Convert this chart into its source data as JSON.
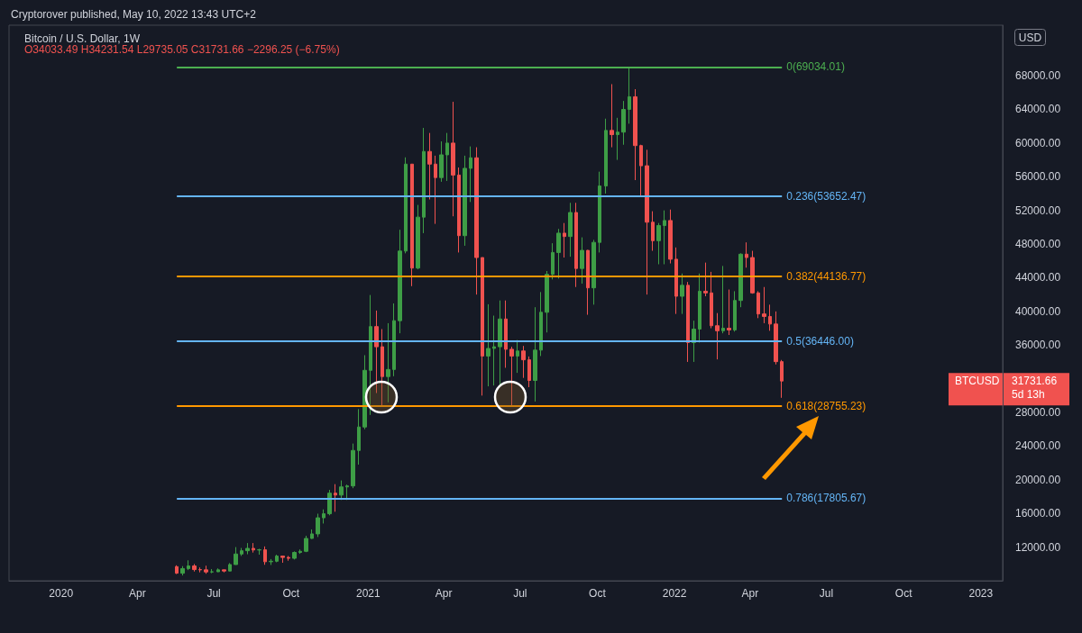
{
  "chart_data": {
    "type": "candlestick",
    "title": "Bitcoin / U.S. Dollar, 1W",
    "subtitle": "O34033.49 H34231.54 L29735.05 C31731.66 −2296.25 (−6.75%)",
    "annotations": [
      "Cryptorover published, May 10, 2022 13:43 UTC+2",
      "USD",
      "BTCUSD",
      "31731.66",
      "5d 13h"
    ],
    "x": [
      "2020-05-18",
      "2020-05-25",
      "2020-06-01",
      "2020-06-08",
      "2020-06-15",
      "2020-06-22",
      "2020-06-29",
      "2020-07-06",
      "2020-07-13",
      "2020-07-20",
      "2020-07-27",
      "2020-08-03",
      "2020-08-10",
      "2020-08-17",
      "2020-08-24",
      "2020-08-31",
      "2020-09-07",
      "2020-09-14",
      "2020-09-21",
      "2020-09-28",
      "2020-10-05",
      "2020-10-12",
      "2020-10-19",
      "2020-10-26",
      "2020-11-02",
      "2020-11-09",
      "2020-11-16",
      "2020-11-23",
      "2020-11-30",
      "2020-12-07",
      "2020-12-14",
      "2020-12-21",
      "2020-12-28",
      "2021-01-04",
      "2021-01-11",
      "2021-01-18",
      "2021-01-25",
      "2021-02-01",
      "2021-02-08",
      "2021-02-15",
      "2021-02-22",
      "2021-03-01",
      "2021-03-08",
      "2021-03-15",
      "2021-03-22",
      "2021-03-29",
      "2021-04-05",
      "2021-04-12",
      "2021-04-19",
      "2021-04-26",
      "2021-05-03",
      "2021-05-10",
      "2021-05-17",
      "2021-05-24",
      "2021-05-31",
      "2021-06-07",
      "2021-06-14",
      "2021-06-21",
      "2021-06-28",
      "2021-07-05",
      "2021-07-12",
      "2021-07-19",
      "2021-07-26",
      "2021-08-02",
      "2021-08-09",
      "2021-08-16",
      "2021-08-23",
      "2021-08-30",
      "2021-09-06",
      "2021-09-13",
      "2021-09-20",
      "2021-09-27",
      "2021-10-04",
      "2021-10-11",
      "2021-10-18",
      "2021-10-25",
      "2021-11-01",
      "2021-11-08",
      "2021-11-15",
      "2021-11-22",
      "2021-11-29",
      "2021-12-06",
      "2021-12-13",
      "2021-12-20",
      "2021-12-27",
      "2022-01-03",
      "2022-01-10",
      "2022-01-17",
      "2022-01-24",
      "2022-01-31",
      "2022-02-07",
      "2022-02-14",
      "2022-02-21",
      "2022-02-28",
      "2022-03-07",
      "2022-03-14",
      "2022-03-21",
      "2022-03-28",
      "2022-04-04",
      "2022-04-11",
      "2022-04-18",
      "2022-04-25",
      "2022-05-02",
      "2022-05-09"
    ],
    "ohlc": [
      [
        9680,
        9840,
        8800,
        8900
      ],
      [
        8900,
        9740,
        8630,
        9450
      ],
      [
        9450,
        10430,
        9270,
        9760
      ],
      [
        9760,
        9990,
        9100,
        9330
      ],
      [
        9330,
        9580,
        9000,
        9300
      ],
      [
        9300,
        9790,
        8830,
        9050
      ],
      [
        9050,
        9390,
        8900,
        9070
      ],
      [
        9070,
        9470,
        9040,
        9300
      ],
      [
        9300,
        9320,
        9000,
        9160
      ],
      [
        9160,
        10100,
        9140,
        9930
      ],
      [
        9930,
        12000,
        9900,
        11180
      ],
      [
        11180,
        11900,
        10950,
        11570
      ],
      [
        11570,
        12480,
        11150,
        11850
      ],
      [
        11850,
        12480,
        11350,
        11660
      ],
      [
        11660,
        11800,
        11100,
        11680
      ],
      [
        11680,
        12080,
        9900,
        10260
      ],
      [
        10260,
        10580,
        9880,
        10320
      ],
      [
        10320,
        11100,
        10200,
        10930
      ],
      [
        10930,
        10990,
        10140,
        10770
      ],
      [
        10770,
        10950,
        10380,
        10670
      ],
      [
        10670,
        11490,
        10530,
        11370
      ],
      [
        11370,
        11720,
        11200,
        11500
      ],
      [
        11500,
        13350,
        11400,
        13030
      ],
      [
        13030,
        14100,
        12980,
        13570
      ],
      [
        13570,
        15970,
        13200,
        15480
      ],
      [
        15480,
        16480,
        14800,
        15960
      ],
      [
        15960,
        18800,
        15780,
        18410
      ],
      [
        18410,
        19480,
        16200,
        18180
      ],
      [
        18180,
        19920,
        17600,
        19150
      ],
      [
        19150,
        19420,
        17600,
        19270
      ],
      [
        19270,
        24300,
        19000,
        23480
      ],
      [
        23480,
        28400,
        21800,
        26270
      ],
      [
        26270,
        34800,
        26000,
        33000
      ],
      [
        33000,
        41950,
        27700,
        38200
      ],
      [
        38200,
        40100,
        30300,
        35800
      ],
      [
        35800,
        37900,
        28800,
        32260
      ],
      [
        32260,
        38600,
        29200,
        33100
      ],
      [
        33100,
        40950,
        32300,
        38900
      ],
      [
        38900,
        49700,
        37400,
        47170
      ],
      [
        47170,
        58300,
        46900,
        57500
      ],
      [
        57500,
        57500,
        43000,
        45150
      ],
      [
        45150,
        52650,
        45000,
        51200
      ],
      [
        51200,
        61800,
        49300,
        59000
      ],
      [
        59000,
        61200,
        53300,
        57500
      ],
      [
        57500,
        58500,
        50400,
        55900
      ],
      [
        55900,
        60200,
        55400,
        58600
      ],
      [
        58600,
        61200,
        55500,
        60000
      ],
      [
        60000,
        64900,
        51300,
        56200
      ],
      [
        56200,
        57100,
        47000,
        49000
      ],
      [
        49000,
        58500,
        47800,
        57000
      ],
      [
        57000,
        59600,
        53000,
        58250
      ],
      [
        58250,
        59500,
        42000,
        46400
      ],
      [
        46400,
        46400,
        30000,
        34700
      ],
      [
        34700,
        40850,
        31100,
        35600
      ],
      [
        35600,
        39500,
        31200,
        35800
      ],
      [
        35800,
        41300,
        31000,
        39100
      ],
      [
        39100,
        41300,
        33300,
        35500
      ],
      [
        35500,
        35800,
        28800,
        34700
      ],
      [
        34700,
        36600,
        32700,
        35300
      ],
      [
        35300,
        35900,
        32100,
        34250
      ],
      [
        34250,
        34650,
        31000,
        31800
      ],
      [
        31800,
        40500,
        29300,
        35400
      ],
      [
        35400,
        42300,
        34700,
        39900
      ],
      [
        39900,
        44800,
        37500,
        44400
      ],
      [
        44400,
        48100,
        43800,
        47000
      ],
      [
        47000,
        49800,
        43900,
        49300
      ],
      [
        49300,
        50500,
        46400,
        48900
      ],
      [
        48900,
        52900,
        46500,
        51750
      ],
      [
        51750,
        52900,
        42900,
        45100
      ],
      [
        45100,
        48800,
        43300,
        47250
      ],
      [
        47250,
        47300,
        39600,
        42800
      ],
      [
        42800,
        48500,
        40800,
        48200
      ],
      [
        48200,
        56600,
        47000,
        54900
      ],
      [
        54900,
        62900,
        54000,
        61500
      ],
      [
        61500,
        67000,
        59500,
        61000
      ],
      [
        61000,
        63000,
        58000,
        61300
      ],
      [
        61300,
        65000,
        59800,
        64000
      ],
      [
        64000,
        69034,
        62300,
        65500
      ],
      [
        65500,
        66400,
        55600,
        59700
      ],
      [
        59700,
        59800,
        53600,
        57300
      ],
      [
        57300,
        59200,
        42000,
        50600
      ],
      [
        50600,
        51900,
        47200,
        48400
      ],
      [
        48400,
        50500,
        45600,
        50200
      ],
      [
        50200,
        52000,
        45600,
        50800
      ],
      [
        50800,
        52100,
        45700,
        46200
      ],
      [
        46200,
        47600,
        39700,
        41800
      ],
      [
        41800,
        44500,
        39700,
        43100
      ],
      [
        43100,
        43500,
        34000,
        36300
      ],
      [
        36300,
        38900,
        34000,
        37900
      ],
      [
        37900,
        44500,
        36300,
        42400
      ],
      [
        42400,
        45800,
        41800,
        42200
      ],
      [
        42200,
        44700,
        38000,
        38300
      ],
      [
        38300,
        39800,
        34300,
        37700
      ],
      [
        37700,
        45400,
        37400,
        38000
      ],
      [
        38000,
        42600,
        37200,
        37800
      ],
      [
        37800,
        42400,
        37600,
        41300
      ],
      [
        41300,
        46900,
        40500,
        46800
      ],
      [
        46800,
        48200,
        45200,
        46400
      ],
      [
        46400,
        47200,
        42100,
        42200
      ],
      [
        42200,
        42400,
        39200,
        39700
      ],
      [
        39700,
        42900,
        38600,
        39400
      ],
      [
        39400,
        40800,
        37700,
        38500
      ],
      [
        38500,
        40000,
        33700,
        34033.49
      ],
      [
        34033.49,
        34231.54,
        29735.05,
        31731.66
      ]
    ],
    "xlim": [
      "2019-10-31",
      "2023-01-27"
    ],
    "xticks": [
      {
        "value": "2020-01-01",
        "label": "2020"
      },
      {
        "value": "2020-04-01",
        "label": "Apr"
      },
      {
        "value": "2020-07-01",
        "label": "Jul"
      },
      {
        "value": "2020-10-01",
        "label": "Oct"
      },
      {
        "value": "2021-01-01",
        "label": "2021"
      },
      {
        "value": "2021-04-01",
        "label": "Apr"
      },
      {
        "value": "2021-07-01",
        "label": "Jul"
      },
      {
        "value": "2021-10-01",
        "label": "Oct"
      },
      {
        "value": "2022-01-01",
        "label": "2022"
      },
      {
        "value": "2022-04-01",
        "label": "Apr"
      },
      {
        "value": "2022-07-01",
        "label": "Jul"
      },
      {
        "value": "2022-10-01",
        "label": "Oct"
      },
      {
        "value": "2023-01-01",
        "label": "2023"
      }
    ],
    "ylim": [
      8000,
      74000
    ],
    "yticks": [
      {
        "value": 12000,
        "label": "12000.00"
      },
      {
        "value": 16000,
        "label": "16000.00"
      },
      {
        "value": 20000,
        "label": "20000.00"
      },
      {
        "value": 24000,
        "label": "24000.00"
      },
      {
        "value": 28000,
        "label": "28000.00"
      },
      {
        "value": 36000,
        "label": "36000.00"
      },
      {
        "value": 40000,
        "label": "40000.00"
      },
      {
        "value": 44000,
        "label": "44000.00"
      },
      {
        "value": 48000,
        "label": "48000.00"
      },
      {
        "value": 52000,
        "label": "52000.00"
      },
      {
        "value": 56000,
        "label": "56000.00"
      },
      {
        "value": 60000,
        "label": "60000.00"
      },
      {
        "value": 64000,
        "label": "64000.00"
      },
      {
        "value": 68000,
        "label": "68000.00"
      }
    ],
    "ref_lines": [
      {
        "axis": "y",
        "value": 69034.01,
        "label": "0(69034.01)",
        "color": "#4caf50"
      },
      {
        "axis": "y",
        "value": 53652.47,
        "label": "0.236(53652.47)",
        "color": "#64b5f6"
      },
      {
        "axis": "y",
        "value": 44136.77,
        "label": "0.382(44136.77)",
        "color": "#ff9800"
      },
      {
        "axis": "y",
        "value": 36446.0,
        "label": "0.5(36446.00)",
        "color": "#64b5f6"
      },
      {
        "axis": "y",
        "value": 28755.23,
        "label": "0.618(28755.23)",
        "color": "#ff9800"
      },
      {
        "axis": "y",
        "value": 17805.67,
        "label": "0.786(17805.67)",
        "color": "#64b5f6"
      }
    ]
  }
}
